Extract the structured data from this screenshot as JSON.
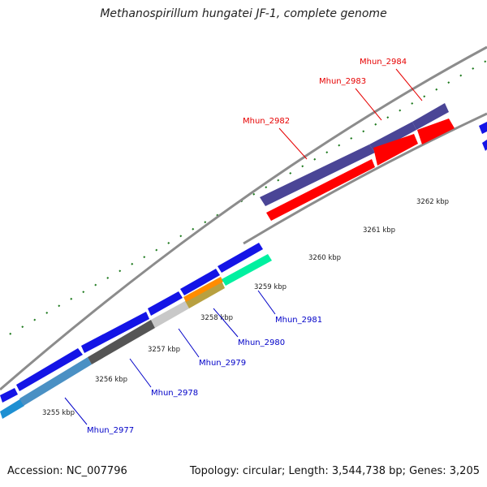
{
  "header": {
    "title": "Methanospirillum hungatei JF-1, complete genome"
  },
  "footer": {
    "accession": "Accession: NC_007796",
    "summary": "Topology: circular; Length: 3,544,738 bp; Genes: 3,205"
  },
  "colors": {
    "backbone": "#8c8c8c",
    "tick": "#1e7a1e",
    "forward_gene": "#1414e6",
    "upper_track": "#4a4596",
    "label_red": "#e60000",
    "label_blue": "#0000c8"
  },
  "chart_data": {
    "type": "genome-map",
    "ticks": [
      "3255 kbp",
      "3256 kbp",
      "3257 kbp",
      "3258 kbp",
      "3259 kbp",
      "3260 kbp",
      "3261 kbp",
      "3262 kbp"
    ],
    "labeled_genes": [
      {
        "name": "Mhun_2977",
        "strand": "lower",
        "color": "#0000c8"
      },
      {
        "name": "Mhun_2978",
        "strand": "lower",
        "color": "#0000c8"
      },
      {
        "name": "Mhun_2979",
        "strand": "lower",
        "color": "#0000c8"
      },
      {
        "name": "Mhun_2980",
        "strand": "lower",
        "color": "#0000c8"
      },
      {
        "name": "Mhun_2981",
        "strand": "lower",
        "color": "#0000c8"
      },
      {
        "name": "Mhun_2982",
        "strand": "upper",
        "color": "#e60000"
      },
      {
        "name": "Mhun_2983",
        "strand": "upper",
        "color": "#e60000"
      },
      {
        "name": "Mhun_2984",
        "strand": "upper",
        "color": "#e60000"
      }
    ]
  }
}
